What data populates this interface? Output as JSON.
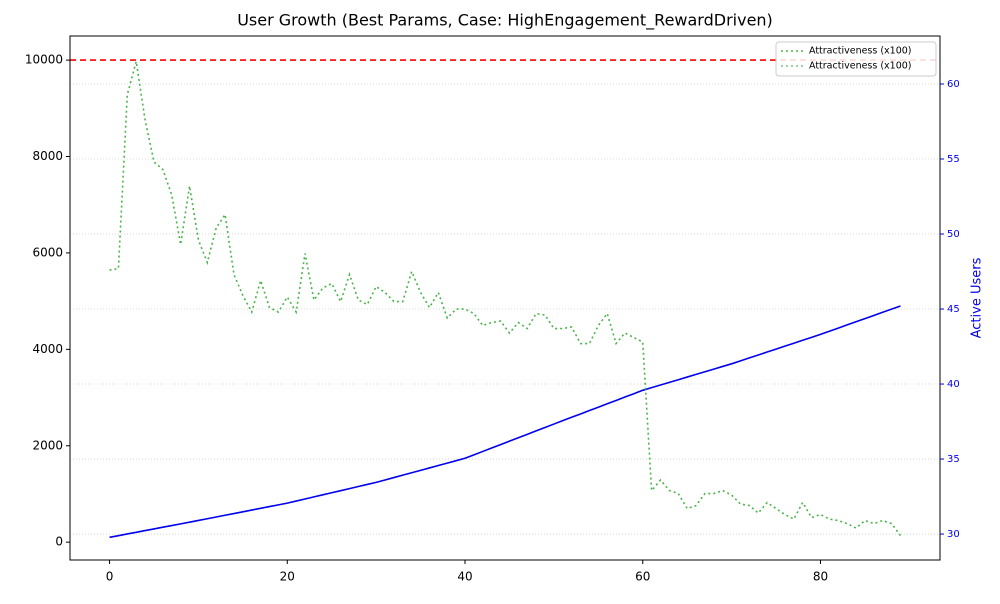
{
  "chart_data": {
    "type": "line",
    "title": "User Growth (Best Params, Case: HighEngagement_RewardDriven)",
    "y2label": "Active Users",
    "x": [
      0,
      1,
      2,
      3,
      4,
      5,
      6,
      7,
      8,
      9,
      10,
      11,
      12,
      13,
      14,
      15,
      16,
      17,
      18,
      19,
      20,
      21,
      22,
      23,
      24,
      25,
      26,
      27,
      28,
      29,
      30,
      31,
      32,
      33,
      34,
      35,
      36,
      37,
      38,
      39,
      40,
      41,
      42,
      43,
      44,
      45,
      46,
      47,
      48,
      49,
      50,
      51,
      52,
      53,
      54,
      55,
      56,
      57,
      58,
      59,
      60,
      61,
      62,
      63,
      64,
      65,
      66,
      67,
      68,
      69,
      70,
      71,
      72,
      73,
      74,
      75,
      76,
      77,
      78,
      79,
      80,
      81,
      82,
      83,
      84,
      85,
      86,
      87,
      88,
      89
    ],
    "series": [
      {
        "color": "#0000ee",
        "style": "solid",
        "values": [
          100,
          135,
          170,
          205,
          240,
          275,
          310,
          345,
          380,
          415,
          450,
          486,
          522,
          558,
          594,
          630,
          666,
          702,
          738,
          774,
          810,
          853,
          896,
          939,
          982,
          1025,
          1068,
          1111,
          1154,
          1197,
          1240,
          1290,
          1340,
          1390,
          1440,
          1490,
          1540,
          1590,
          1640,
          1690,
          1740,
          1811,
          1882,
          1953,
          2024,
          2095,
          2166,
          2237,
          2308,
          2379,
          2450,
          2520,
          2590,
          2660,
          2730,
          2800,
          2870,
          2940,
          3010,
          3080,
          3150,
          3205,
          3260,
          3315,
          3370,
          3425,
          3480,
          3535,
          3590,
          3645,
          3700,
          3761,
          3822,
          3883,
          3944,
          4005,
          4066,
          4127,
          4188,
          4249,
          4310,
          4376,
          4441,
          4507,
          4572,
          4638,
          4703,
          4769,
          4834,
          4900
        ]
      },
      {
        "color": "#4cb34c",
        "style": "dotted",
        "axis": "y2",
        "values": [
          47.6,
          47.7,
          59.3,
          61.5,
          57.6,
          54.8,
          54.3,
          52.6,
          49.3,
          53.2,
          49.6,
          48.1,
          50.4,
          51.3,
          47.3,
          45.9,
          44.8,
          46.9,
          45.1,
          44.8,
          45.8,
          44.8,
          48.7,
          45.6,
          46.4,
          46.7,
          45.5,
          47.3,
          45.6,
          45.3,
          46.5,
          46.1,
          45.5,
          45.5,
          47.5,
          46.1,
          45.1,
          46.1,
          44.4,
          45.0,
          45.0,
          44.7,
          43.9,
          44.1,
          44.2,
          43.4,
          44.1,
          43.7,
          44.7,
          44.6,
          43.7,
          43.7,
          43.8,
          42.7,
          42.7,
          43.9,
          44.7,
          42.7,
          43.4,
          43.1,
          42.8,
          32.9,
          33.6,
          32.9,
          32.7,
          31.7,
          31.9,
          32.7,
          32.7,
          32.9,
          32.6,
          32.0,
          31.9,
          31.4,
          32.1,
          31.7,
          31.3,
          31.0,
          32.1,
          31.1,
          31.3,
          31.0,
          30.9,
          30.7,
          30.4,
          30.9,
          30.7,
          30.9,
          30.7,
          29.9
        ]
      }
    ],
    "legend": [
      {
        "label": "Attractiveness (x100)",
        "color": "#4cb34c"
      },
      {
        "label": "Attractiveness (x100)",
        "color": "#7fbf7f"
      }
    ],
    "hline": {
      "value": 10000,
      "color": "#ff0000"
    },
    "xlim": [
      -4.45,
      93.45
    ],
    "xticks": [
      0,
      20,
      40,
      60,
      80
    ],
    "ylim": [
      -370,
      10500
    ],
    "yticks": [
      0,
      2000,
      4000,
      6000,
      8000,
      10000
    ],
    "y2lim": [
      28.27,
      63.2
    ],
    "y2ticks": [
      30,
      35,
      40,
      45,
      50,
      55,
      60
    ],
    "grid": "y2"
  }
}
